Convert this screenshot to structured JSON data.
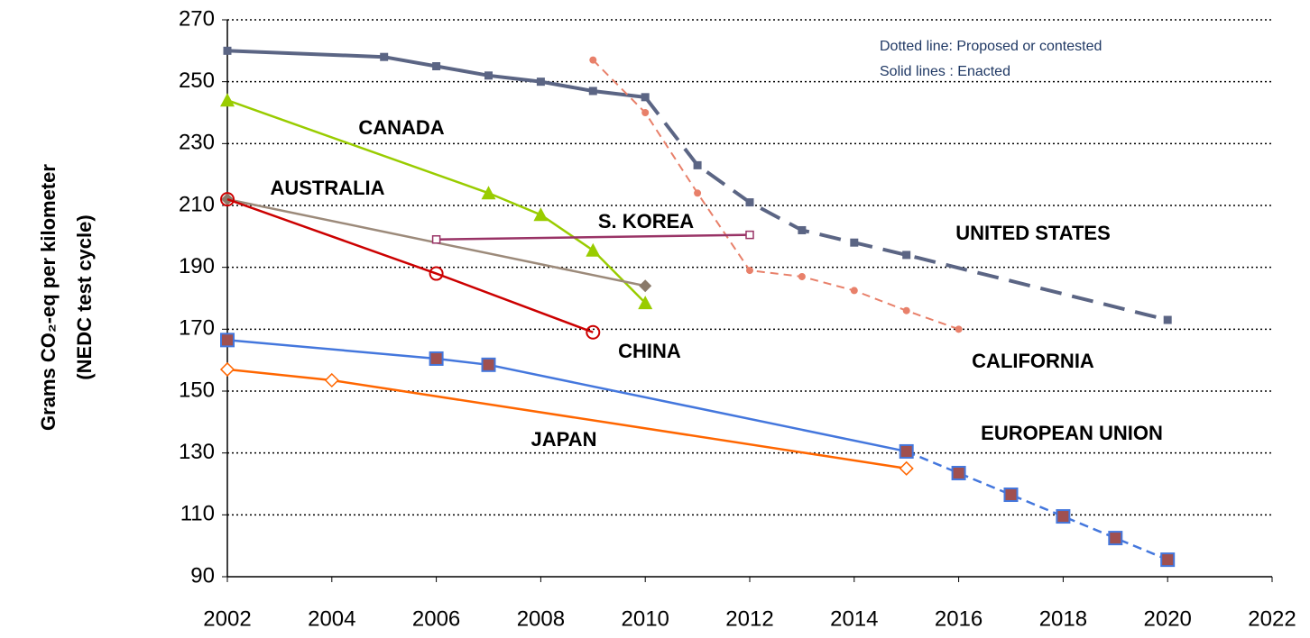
{
  "chart_data": {
    "type": "line",
    "ylabel": [
      "Grams CO₂-eq per kilometer",
      "(NEDC test cycle)"
    ],
    "annotations": [
      "Dotted line: Proposed or contested",
      "Solid lines : Enacted"
    ],
    "xlim": [
      2002,
      2022
    ],
    "xticks": [
      2002,
      2004,
      2006,
      2008,
      2010,
      2012,
      2014,
      2016,
      2018,
      2020,
      2022
    ],
    "ylim": [
      90,
      270
    ],
    "yticks": [
      90,
      110,
      130,
      150,
      170,
      190,
      210,
      230,
      250,
      270
    ],
    "grid": true,
    "series": [
      {
        "name": "UNITED STATES",
        "color": "#5b6584",
        "marker": "square",
        "marker_color": "#5b6584",
        "dash_from": 2010,
        "x": [
          2002,
          2005,
          2006,
          2007,
          2008,
          2009,
          2010,
          2011,
          2012,
          2013,
          2014,
          2015,
          2020
        ],
        "values": [
          260,
          258,
          255,
          252,
          250,
          247,
          245,
          223,
          211,
          202,
          198,
          194,
          173
        ]
      },
      {
        "name": "CALIFORNIA",
        "color": "#e8806a",
        "marker": "dot",
        "marker_color": "#e8806a",
        "dash_from": 2009,
        "x": [
          2009,
          2010,
          2011,
          2012,
          2013,
          2014,
          2015,
          2016
        ],
        "values": [
          257,
          240,
          214,
          189,
          187,
          182.5,
          176,
          170
        ]
      },
      {
        "name": "CANADA",
        "color": "#99cc00",
        "marker": "triangle",
        "marker_color": "#99cc00",
        "x": [
          2002,
          2007,
          2008,
          2009,
          2010
        ],
        "values": [
          244,
          214,
          207,
          195.5,
          178.5
        ]
      },
      {
        "name": "AUSTRALIA",
        "color": "#9c8a7a",
        "marker": "diamond",
        "marker_color": "#8a7a6a",
        "x": [
          2002,
          2010
        ],
        "values": [
          212,
          184
        ]
      },
      {
        "name": "CHINA",
        "color": "#cc0000",
        "marker": "circle-open",
        "marker_color": "#cc0000",
        "x": [
          2002,
          2006,
          2009
        ],
        "values": [
          212,
          188,
          169
        ]
      },
      {
        "name": "S. KOREA",
        "color": "#993366",
        "marker": "square-open",
        "marker_color": "#993366",
        "x": [
          2006,
          2012
        ],
        "values": [
          199,
          200.5
        ]
      },
      {
        "name": "EUROPEAN UNION",
        "color": "#4477dd",
        "marker": "square",
        "marker_color": "#a05050",
        "dash_from": 2015,
        "x": [
          2002,
          2006,
          2007,
          2015,
          2016,
          2017,
          2018,
          2019,
          2020
        ],
        "values": [
          166.5,
          160.5,
          158.5,
          130.5,
          123.5,
          116.5,
          109.5,
          102.5,
          95.5
        ]
      },
      {
        "name": "JAPAN",
        "color": "#ff6600",
        "marker": "diamond-open",
        "marker_color": "#ff6600",
        "x": [
          2002,
          2004,
          2015
        ],
        "values": [
          157,
          153.5,
          125
        ]
      }
    ]
  }
}
